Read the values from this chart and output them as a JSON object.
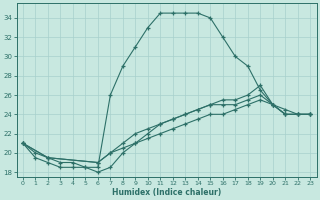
{
  "xlabel": "Humidex (Indice chaleur)",
  "background_color": "#c8e8e0",
  "grid_color": "#a8d0cc",
  "line_color": "#2d7068",
  "xlim": [
    -0.5,
    23.5
  ],
  "ylim": [
    17.5,
    35.5
  ],
  "xticks": [
    0,
    1,
    2,
    3,
    4,
    5,
    6,
    7,
    8,
    9,
    10,
    11,
    12,
    13,
    14,
    15,
    16,
    17,
    18,
    19,
    20,
    21,
    22,
    23
  ],
  "yticks": [
    18,
    20,
    22,
    24,
    26,
    28,
    30,
    32,
    34
  ],
  "line1_x": [
    0,
    1,
    2,
    3,
    4,
    5,
    6,
    7,
    8,
    9,
    10,
    11,
    12,
    13,
    14,
    15,
    16,
    17,
    18,
    19,
    20,
    21,
    22,
    23
  ],
  "line1_y": [
    21,
    20,
    19.5,
    19,
    19,
    18.5,
    18.5,
    26,
    29,
    31,
    33,
    34.5,
    34.5,
    34.5,
    34.5,
    34,
    32,
    30,
    29,
    26.5,
    25,
    24,
    24,
    24
  ],
  "line2_x": [
    0,
    1,
    2,
    3,
    4,
    5,
    6,
    7,
    8,
    9,
    10,
    11,
    12,
    13,
    14,
    15,
    16,
    17,
    18,
    19,
    20,
    21,
    22,
    23
  ],
  "line2_y": [
    21,
    19.5,
    19,
    18.5,
    18.5,
    18.5,
    18,
    18.5,
    20,
    21,
    22,
    23,
    23.5,
    24,
    24.5,
    25,
    25.5,
    25.5,
    26,
    27,
    25,
    24.5,
    24,
    24
  ],
  "line3_x": [
    0,
    2,
    6,
    7,
    8,
    9,
    10,
    11,
    12,
    13,
    14,
    15,
    16,
    17,
    18,
    19,
    20,
    21,
    22,
    23
  ],
  "line3_y": [
    21,
    19.5,
    19,
    20,
    21,
    22,
    22.5,
    23,
    23.5,
    24,
    24.5,
    25,
    25,
    25,
    25.5,
    26,
    25,
    24,
    24,
    24
  ],
  "line4_x": [
    0,
    2,
    6,
    7,
    8,
    9,
    10,
    11,
    12,
    13,
    14,
    15,
    16,
    17,
    18,
    19,
    20,
    21,
    22,
    23
  ],
  "line4_y": [
    21,
    19.5,
    19,
    20,
    20.5,
    21,
    21.5,
    22,
    22.5,
    23,
    23.5,
    24,
    24,
    24.5,
    25,
    25.5,
    25,
    24,
    24,
    24
  ]
}
